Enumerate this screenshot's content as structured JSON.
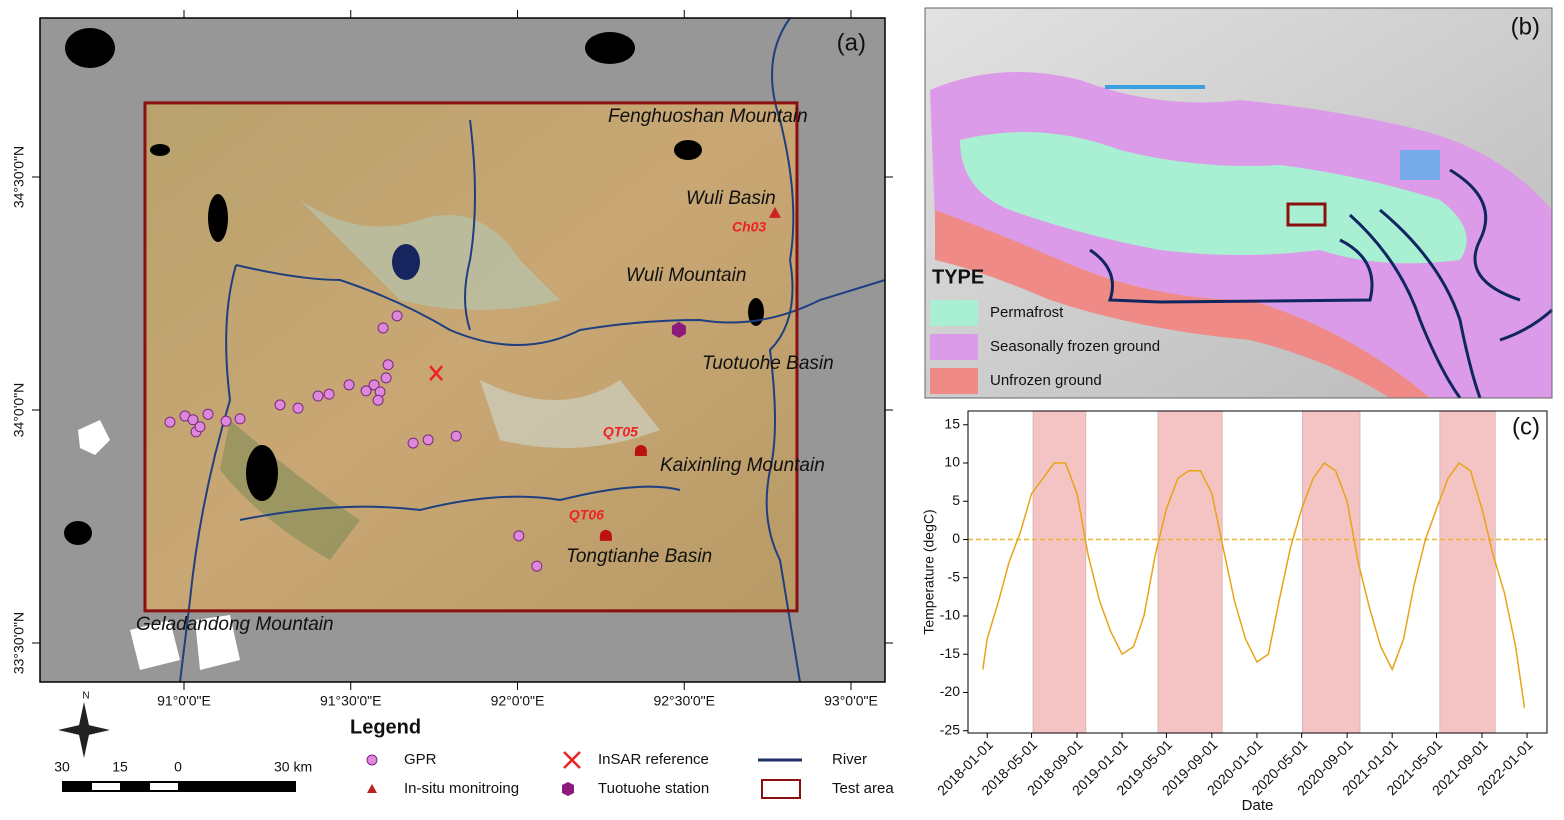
{
  "map_a": {
    "panel_label": "(a)",
    "lon_ticks": [
      {
        "value": 91,
        "label": "91°0'0\"E"
      },
      {
        "value": 91.5,
        "label": "91°30'0\"E"
      },
      {
        "value": 92,
        "label": "92°0'0\"E"
      },
      {
        "value": 92.5,
        "label": "92°30'0\"E"
      },
      {
        "value": 93,
        "label": "93°0'0\"E"
      }
    ],
    "lat_ticks": [
      {
        "value": 34.5,
        "label": "34°30'0\"N"
      },
      {
        "value": 34,
        "label": "34°0'0\"N"
      },
      {
        "value": 33.5,
        "label": "33°30'0\"N"
      }
    ],
    "places": [
      "Fenghuoshan Mountain",
      "Wuli Basin",
      "Wuli Mountain",
      "Tuotuohe Basin",
      "Kaixinling Mountain",
      "Tongtianhe Basin",
      "Geladandong Mountain"
    ],
    "sites": [
      {
        "label": "Ch03",
        "lon": 92.772,
        "lat": 34.423
      },
      {
        "label": "QT05",
        "lon": 92.37,
        "lat": 33.912
      },
      {
        "label": "QT06",
        "lon": 92.265,
        "lat": 33.73
      }
    ],
    "tuotuohe_station": {
      "lon": 92.484,
      "lat": 34.172
    },
    "insar_reference": {
      "lon": 91.756,
      "lat": 34.079
    },
    "test_area": {
      "lon": [
        90.883,
        92.838
      ],
      "lat": [
        33.569,
        34.659
      ]
    },
    "gpr": {
      "lon": [
        90.958,
        91.003,
        91.027,
        91.036,
        91.048,
        91.072,
        91.126,
        91.168,
        91.288,
        91.342,
        91.402,
        91.435,
        91.495,
        91.546,
        91.57,
        91.588,
        91.582,
        91.612,
        91.606,
        91.597,
        91.639,
        91.687,
        91.732,
        91.816,
        92.004,
        92.058
      ],
      "lat": [
        33.974,
        33.987,
        33.979,
        33.953,
        33.964,
        33.991,
        33.976,
        33.981,
        34.011,
        34.004,
        34.03,
        34.034,
        34.054,
        34.041,
        34.054,
        34.039,
        34.021,
        34.097,
        34.069,
        34.176,
        34.202,
        33.929,
        33.936,
        33.944,
        33.73,
        33.665
      ]
    },
    "north": "N",
    "scale_labels": [
      "30",
      "15",
      "0",
      "30 km"
    ],
    "legend": {
      "title": "Legend",
      "gpr": "GPR",
      "insitu": "In-situ monitroing",
      "insar": "InSAR reference",
      "station": "Tuotuohe station",
      "river": "River",
      "test_area": "Test area"
    }
  },
  "map_b": {
    "panel_label": "(b)",
    "legend_title": "TYPE",
    "classes": [
      {
        "name": "Permafrost",
        "color": "#a9efd3"
      },
      {
        "name": "Seasonally frozen ground",
        "color": "#dc9be8"
      },
      {
        "name": "Unfrozen ground",
        "color": "#ef8a86"
      }
    ]
  },
  "chart_data": {
    "type": "line",
    "panel_label": "(c)",
    "x_label": "Date",
    "y_label": "Temperature (degC)",
    "x": [
      "2017-12-20",
      "2018-01-01",
      "2018-02-01",
      "2018-03-01",
      "2018-04-01",
      "2018-05-01",
      "2018-06-01",
      "2018-07-01",
      "2018-08-01",
      "2018-09-01",
      "2018-10-01",
      "2018-11-01",
      "2018-12-01",
      "2019-01-01",
      "2019-02-01",
      "2019-03-01",
      "2019-04-01",
      "2019-05-01",
      "2019-06-01",
      "2019-07-01",
      "2019-08-01",
      "2019-09-01",
      "2019-10-01",
      "2019-11-01",
      "2019-12-01",
      "2020-01-01",
      "2020-02-01",
      "2020-03-01",
      "2020-04-01",
      "2020-05-01",
      "2020-06-01",
      "2020-07-01",
      "2020-08-01",
      "2020-09-01",
      "2020-10-01",
      "2020-11-01",
      "2020-12-01",
      "2021-01-01",
      "2021-02-01",
      "2021-03-01",
      "2021-04-01",
      "2021-05-01",
      "2021-06-01",
      "2021-07-01",
      "2021-08-01",
      "2021-09-01",
      "2021-10-01",
      "2021-11-01",
      "2021-12-01",
      "2021-12-25"
    ],
    "values": [
      -17,
      -13,
      -8,
      -3,
      1,
      6,
      8,
      10,
      10,
      6,
      -2,
      -8,
      -12,
      -15,
      -14,
      -10,
      -2,
      4,
      8,
      9,
      9,
      6,
      -1,
      -8,
      -13,
      -16,
      -15,
      -8,
      -1,
      4,
      8,
      10,
      9,
      5,
      -3,
      -9,
      -14,
      -17,
      -13,
      -6,
      0,
      4,
      8,
      10,
      9,
      4,
      -2,
      -7,
      -14,
      -22
    ],
    "color": "#e8a317",
    "xlim": [
      "2017-11-10",
      "2022-02-24"
    ],
    "xticks": [
      "2018-01-01",
      "2018-05-01",
      "2018-09-01",
      "2019-01-01",
      "2019-05-01",
      "2019-09-01",
      "2020-01-01",
      "2020-05-01",
      "2020-09-01",
      "2021-01-01",
      "2021-05-01",
      "2021-09-01",
      "2022-01-01"
    ],
    "ylim": [
      -25.3,
      16.8
    ],
    "yticks": [
      15,
      10,
      5,
      0,
      -5,
      -10,
      -15,
      -20,
      -25
    ],
    "reference_line": {
      "value": 0,
      "color": "#e8b830"
    },
    "shaded_periods": [
      {
        "start": "2018-05-05",
        "end": "2018-09-25"
      },
      {
        "start": "2019-04-08",
        "end": "2019-09-29"
      },
      {
        "start": "2020-05-03",
        "end": "2020-10-06"
      },
      {
        "start": "2021-05-10",
        "end": "2021-10-07"
      }
    ],
    "shade_color": "#f4c4c4"
  }
}
